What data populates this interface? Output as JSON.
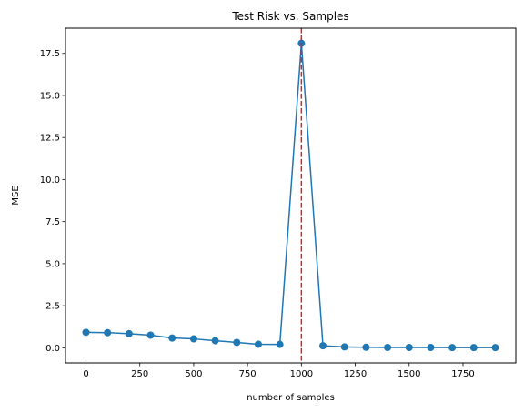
{
  "chart_data": {
    "type": "line",
    "title": "Test Risk vs. Samples",
    "xlabel": "number of samples",
    "ylabel": "MSE",
    "xlim": [
      -95,
      1995
    ],
    "ylim": [
      -0.9,
      19.0
    ],
    "xticks": [
      0,
      250,
      500,
      750,
      1000,
      1250,
      1500,
      1750
    ],
    "xtick_labels": [
      "0",
      "250",
      "500",
      "750",
      "1000",
      "1250",
      "1500",
      "1750"
    ],
    "yticks": [
      0.0,
      2.5,
      5.0,
      7.5,
      10.0,
      12.5,
      15.0,
      17.5
    ],
    "ytick_labels": [
      "0.0",
      "2.5",
      "5.0",
      "7.5",
      "10.0",
      "12.5",
      "15.0",
      "17.5"
    ],
    "grid": false,
    "series": [
      {
        "color": "#1f77b4",
        "marker": "circle",
        "x": [
          0,
          100,
          200,
          300,
          400,
          500,
          600,
          700,
          800,
          900,
          1000,
          1100,
          1200,
          1300,
          1400,
          1500,
          1600,
          1700,
          1800,
          1900
        ],
        "y": [
          0.92,
          0.9,
          0.84,
          0.75,
          0.58,
          0.53,
          0.42,
          0.32,
          0.21,
          0.2,
          18.1,
          0.12,
          0.05,
          0.03,
          0.02,
          0.02,
          0.02,
          0.01,
          0.01,
          0.01
        ]
      }
    ],
    "vlines": [
      {
        "x": 1000,
        "color": "#d62728",
        "style": "dashed"
      }
    ]
  }
}
